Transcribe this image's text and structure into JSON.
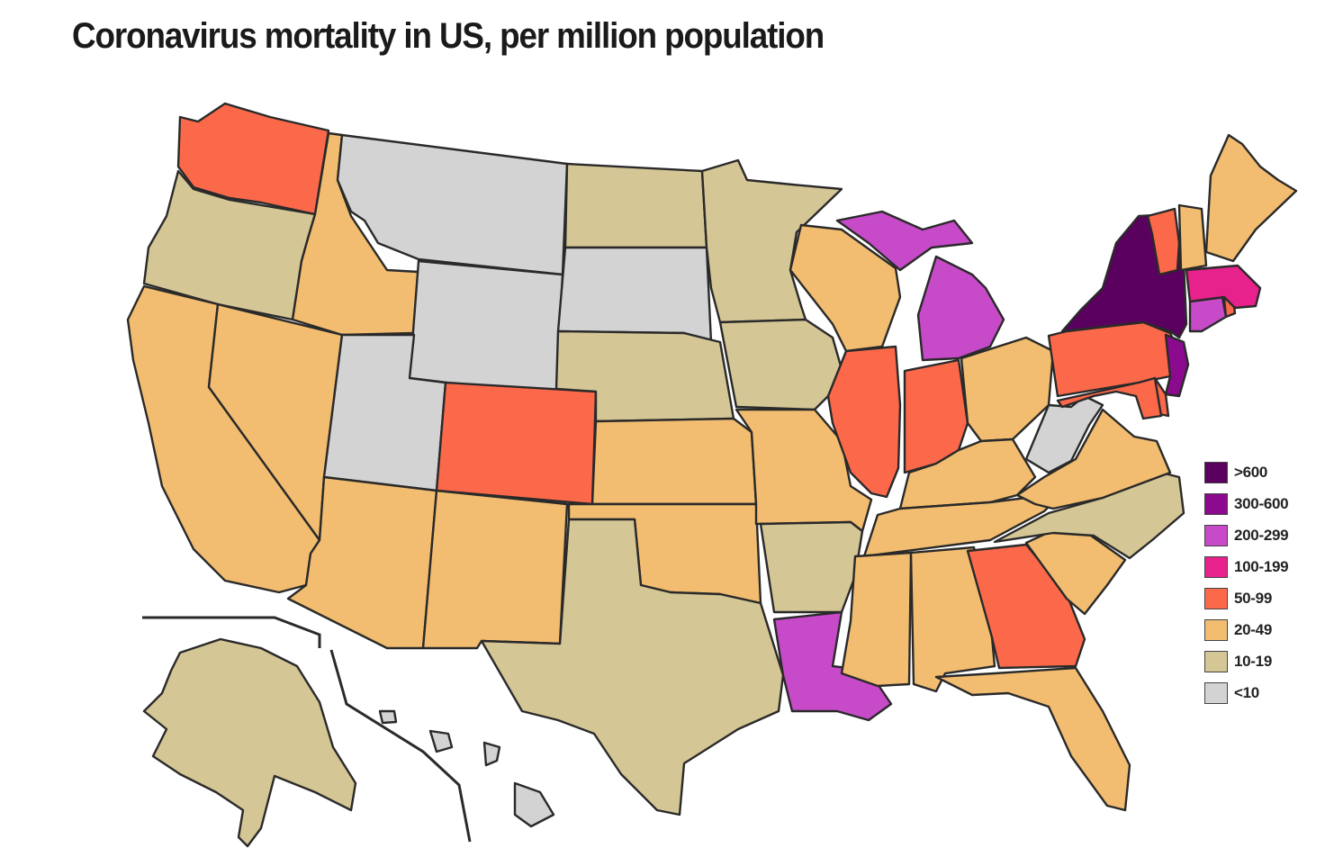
{
  "title": "Coronavirus mortality in US, per million population",
  "legend": [
    {
      "key": "gt600",
      "label": ">600",
      "color": "#5a005f"
    },
    {
      "key": "300_600",
      "label": "300-600",
      "color": "#8b0a8e"
    },
    {
      "key": "200_299",
      "label": "200-299",
      "color": "#c74ac8"
    },
    {
      "key": "100_199",
      "label": "100-199",
      "color": "#e8228c"
    },
    {
      "key": "50_99",
      "label": "50-99",
      "color": "#fc694a"
    },
    {
      "key": "20_49",
      "label": "20-49",
      "color": "#f2bd70"
    },
    {
      "key": "10_19",
      "label": "10-19",
      "color": "#d5c695"
    },
    {
      "key": "lt10",
      "label": "<10",
      "color": "#d3d3d3"
    }
  ],
  "states": [
    {
      "name": "Washington",
      "bucket": "50_99"
    },
    {
      "name": "Oregon",
      "bucket": "10_19"
    },
    {
      "name": "California",
      "bucket": "20_49"
    },
    {
      "name": "Idaho",
      "bucket": "20_49"
    },
    {
      "name": "Nevada",
      "bucket": "20_49"
    },
    {
      "name": "Montana",
      "bucket": "lt10"
    },
    {
      "name": "Wyoming",
      "bucket": "lt10"
    },
    {
      "name": "Utah",
      "bucket": "lt10"
    },
    {
      "name": "Arizona",
      "bucket": "20_49"
    },
    {
      "name": "Colorado",
      "bucket": "50_99"
    },
    {
      "name": "New Mexico",
      "bucket": "20_49"
    },
    {
      "name": "North Dakota",
      "bucket": "10_19"
    },
    {
      "name": "South Dakota",
      "bucket": "lt10"
    },
    {
      "name": "Nebraska",
      "bucket": "10_19"
    },
    {
      "name": "Kansas",
      "bucket": "20_49"
    },
    {
      "name": "Oklahoma",
      "bucket": "20_49"
    },
    {
      "name": "Texas",
      "bucket": "10_19"
    },
    {
      "name": "Minnesota",
      "bucket": "10_19"
    },
    {
      "name": "Iowa",
      "bucket": "10_19"
    },
    {
      "name": "Missouri",
      "bucket": "20_49"
    },
    {
      "name": "Arkansas",
      "bucket": "10_19"
    },
    {
      "name": "Louisiana",
      "bucket": "200_299"
    },
    {
      "name": "Wisconsin",
      "bucket": "20_49"
    },
    {
      "name": "Illinois",
      "bucket": "50_99"
    },
    {
      "name": "Michigan",
      "bucket": "200_299"
    },
    {
      "name": "Indiana",
      "bucket": "50_99"
    },
    {
      "name": "Ohio",
      "bucket": "20_49"
    },
    {
      "name": "Kentucky",
      "bucket": "20_49"
    },
    {
      "name": "Tennessee",
      "bucket": "20_49"
    },
    {
      "name": "Mississippi",
      "bucket": "20_49"
    },
    {
      "name": "Alabama",
      "bucket": "20_49"
    },
    {
      "name": "Georgia",
      "bucket": "50_99"
    },
    {
      "name": "Florida",
      "bucket": "20_49"
    },
    {
      "name": "South Carolina",
      "bucket": "20_49"
    },
    {
      "name": "North Carolina",
      "bucket": "10_19"
    },
    {
      "name": "Virginia",
      "bucket": "20_49"
    },
    {
      "name": "West Virginia",
      "bucket": "lt10"
    },
    {
      "name": "Pennsylvania",
      "bucket": "50_99"
    },
    {
      "name": "New York",
      "bucket": "gt600"
    },
    {
      "name": "New Jersey",
      "bucket": "300_600"
    },
    {
      "name": "Delaware",
      "bucket": "50_99"
    },
    {
      "name": "Maryland",
      "bucket": "50_99"
    },
    {
      "name": "Connecticut",
      "bucket": "200_299"
    },
    {
      "name": "Rhode Island",
      "bucket": "50_99"
    },
    {
      "name": "Massachusetts",
      "bucket": "100_199"
    },
    {
      "name": "Vermont",
      "bucket": "50_99"
    },
    {
      "name": "New Hampshire",
      "bucket": "20_49"
    },
    {
      "name": "Maine",
      "bucket": "20_49"
    },
    {
      "name": "Alaska",
      "bucket": "10_19"
    },
    {
      "name": "Hawaii",
      "bucket": "lt10"
    }
  ]
}
